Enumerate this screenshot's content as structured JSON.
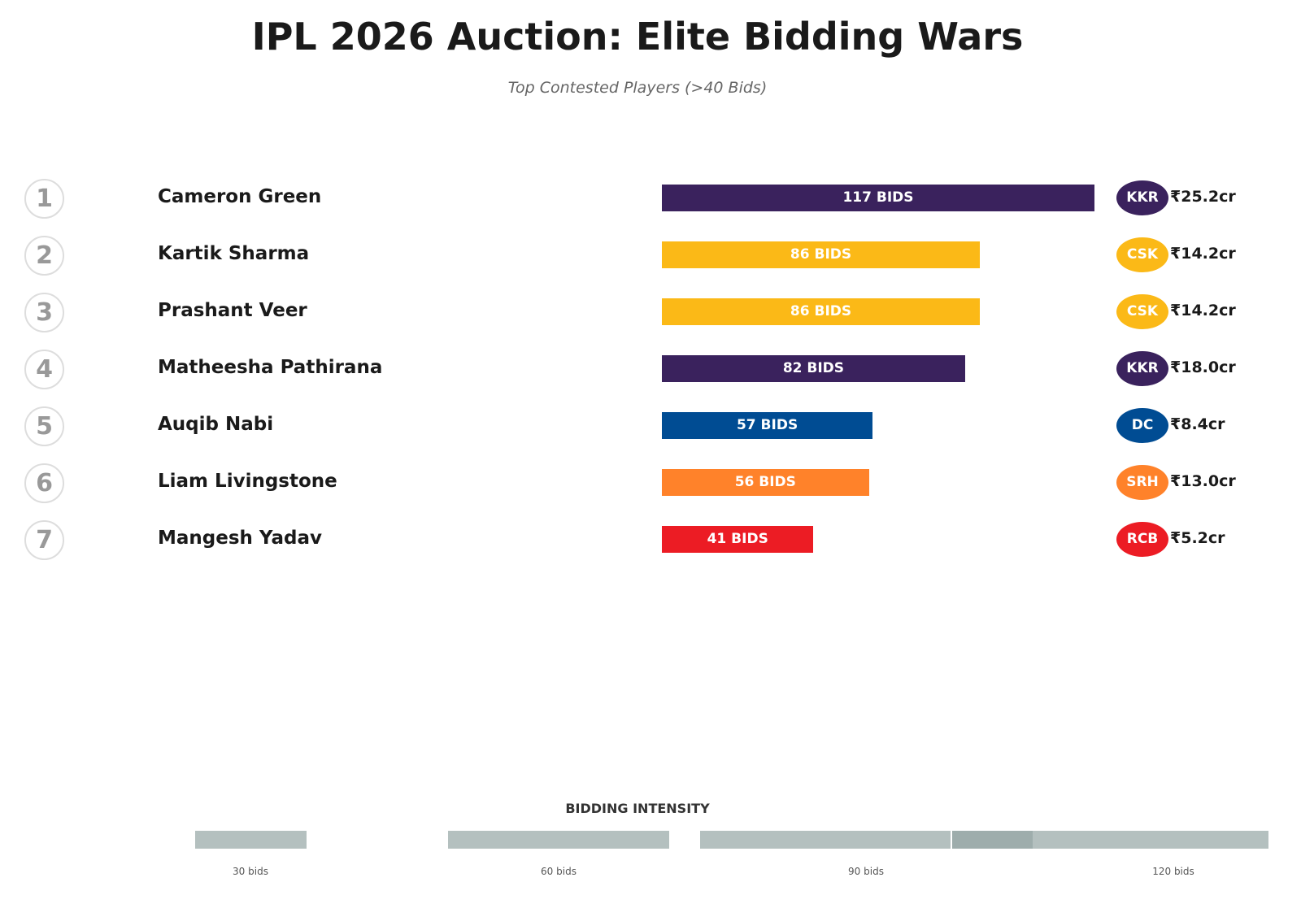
{
  "title": "IPL 2026 Auction: Elite Bidding Wars",
  "subtitle": "Top Contested Players (>40 Bids)",
  "chart_data": {
    "type": "bar",
    "orientation": "horizontal",
    "title": "IPL 2026 Auction: Elite Bidding Wars",
    "subtitle": "Top Contested Players (>40 Bids)",
    "categories": [
      "Cameron Green",
      "Kartik Sharma",
      "Prashant Veer",
      "Matheesha Pathirana",
      "Auqib Nabi",
      "Liam Livingstone",
      "Mangesh Yadav"
    ],
    "values": [
      117,
      86,
      86,
      82,
      57,
      56,
      41
    ],
    "rows": [
      {
        "rank": "1",
        "name": "Cameron Green",
        "bids": 117,
        "label": "117 BIDS",
        "team": "KKR",
        "price": "₹25.2cr",
        "color": "#3a225d"
      },
      {
        "rank": "2",
        "name": "Kartik Sharma",
        "bids": 86,
        "label": "86 BIDS",
        "team": "CSK",
        "price": "₹14.2cr",
        "color": "#fbb917"
      },
      {
        "rank": "3",
        "name": "Prashant Veer",
        "bids": 86,
        "label": "86 BIDS",
        "team": "CSK",
        "price": "₹14.2cr",
        "color": "#fbb917"
      },
      {
        "rank": "4",
        "name": "Matheesha Pathirana",
        "bids": 82,
        "label": "82 BIDS",
        "team": "KKR",
        "price": "₹18.0cr",
        "color": "#3a225d"
      },
      {
        "rank": "5",
        "name": "Auqib Nabi",
        "bids": 57,
        "label": "57 BIDS",
        "team": "DC",
        "price": "₹8.4cr",
        "color": "#004c93"
      },
      {
        "rank": "6",
        "name": "Liam Livingstone",
        "bids": 56,
        "label": "56 BIDS",
        "team": "SRH",
        "price": "₹13.0cr",
        "color": "#ff822a"
      },
      {
        "rank": "7",
        "name": "Mangesh Yadav",
        "bids": 41,
        "label": "41 BIDS",
        "team": "RCB",
        "price": "₹5.2cr",
        "color": "#ec1c24"
      }
    ],
    "intensity": {
      "title": "BIDDING INTENSITY",
      "ticks": [
        "30 bids",
        "60 bids",
        "90 bids",
        "120 bids"
      ]
    }
  }
}
